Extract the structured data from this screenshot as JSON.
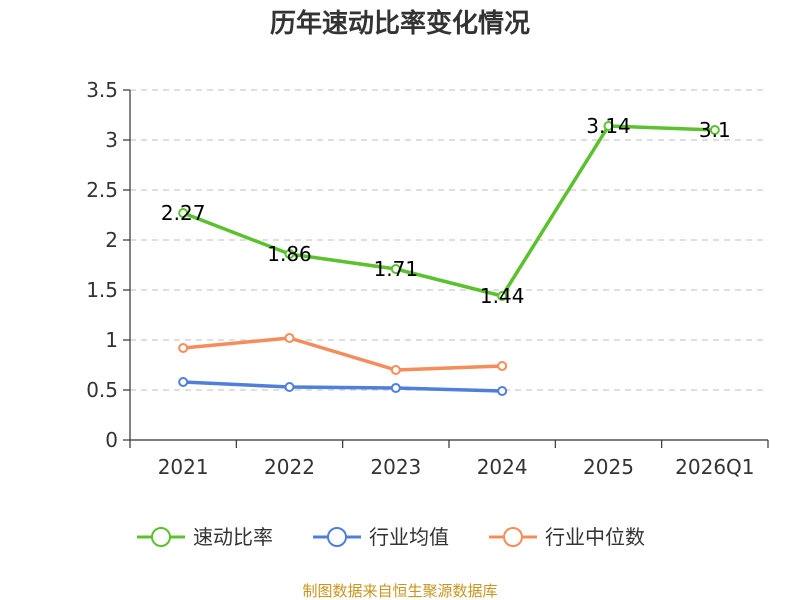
{
  "chart_data": {
    "type": "line",
    "title": "历年速动比率变化情况",
    "categories": [
      "2021",
      "2022",
      "2023",
      "2024",
      "2025",
      "2026Q1"
    ],
    "ylim": [
      0,
      3.5
    ],
    "yticks": [
      "0",
      "0.5",
      "1",
      "1.5",
      "2",
      "2.5",
      "3",
      "3.5"
    ],
    "grid": true,
    "legend_position": "bottom",
    "series": [
      {
        "name": "速动比率",
        "color": "#5cc12e",
        "values": [
          2.27,
          1.86,
          1.71,
          1.44,
          3.14,
          3.1
        ],
        "labels": [
          "2.27",
          "1.86",
          "1.71",
          "1.44",
          "3.14",
          "3.1"
        ]
      },
      {
        "name": "行业均值",
        "color": "#4f7fdb",
        "values": [
          0.58,
          0.53,
          0.52,
          0.49,
          null,
          null
        ]
      },
      {
        "name": "行业中位数",
        "color": "#f58c5a",
        "values": [
          0.92,
          1.02,
          0.7,
          0.74,
          null,
          null
        ]
      }
    ],
    "source": "制图数据来自恒生聚源数据库"
  }
}
